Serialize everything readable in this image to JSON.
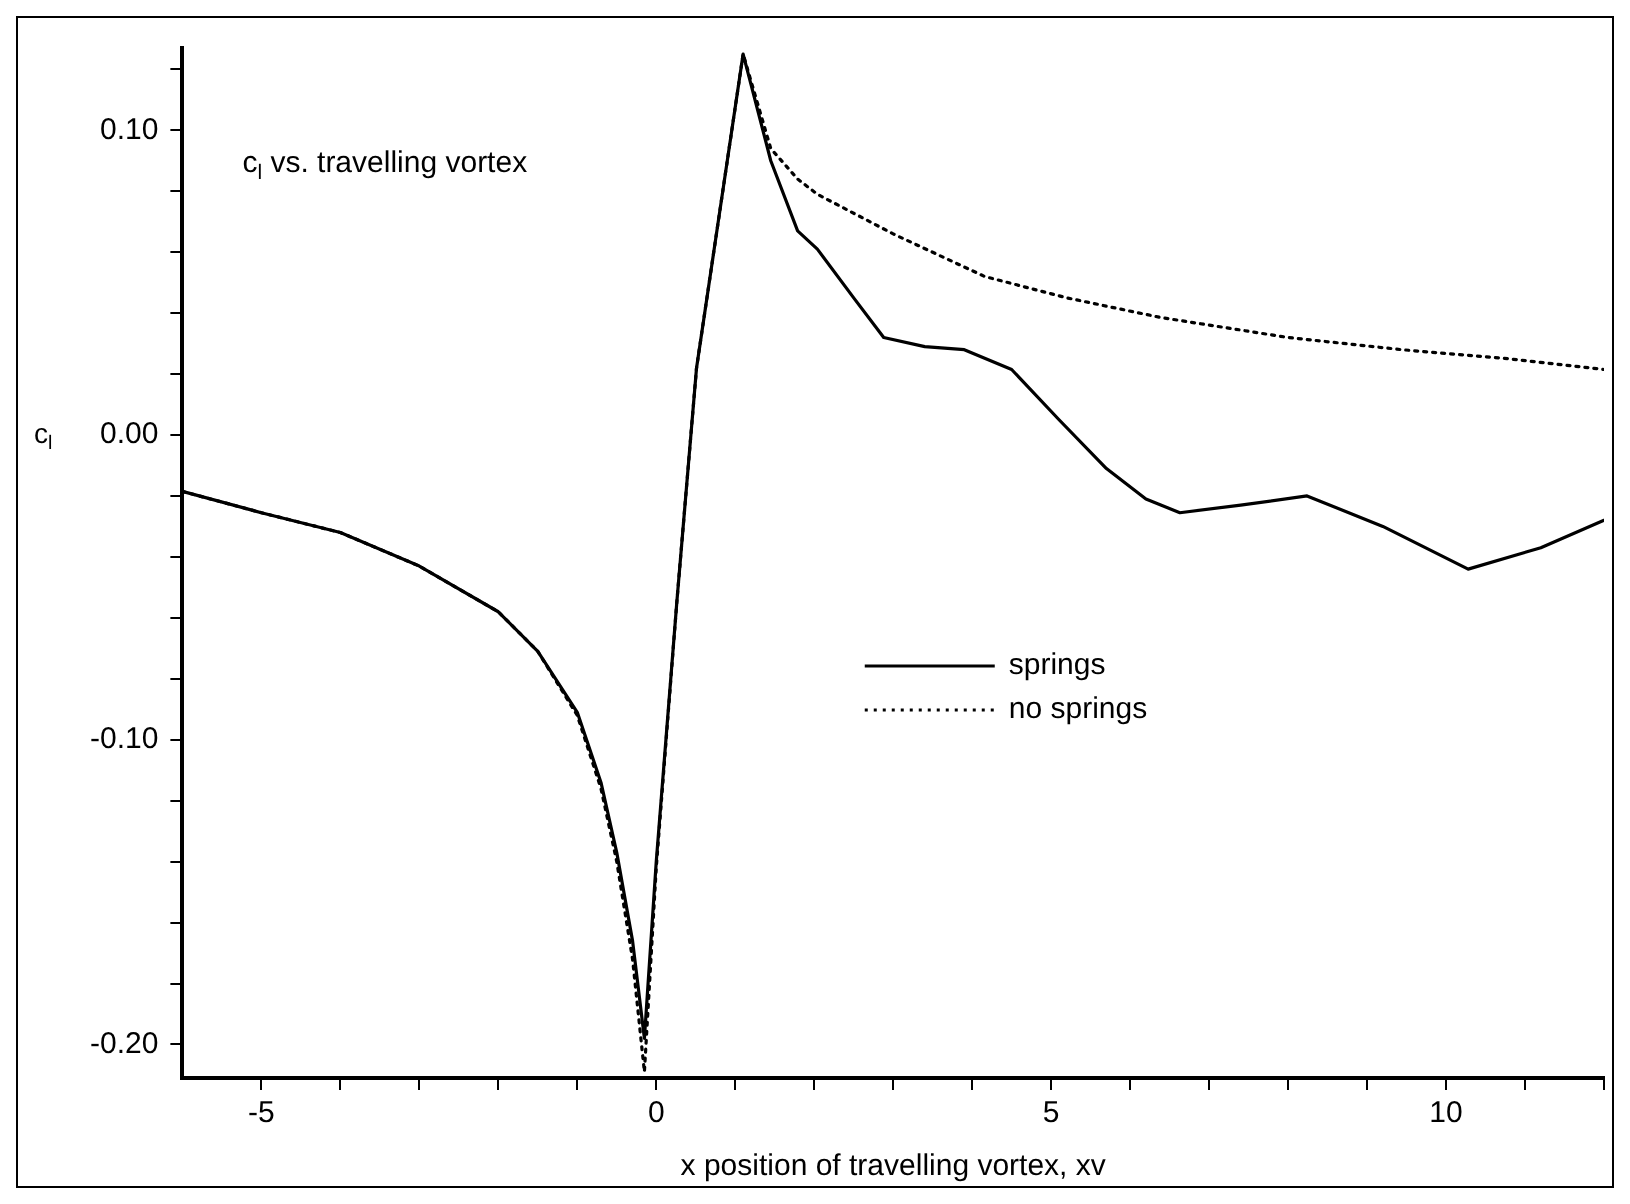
{
  "chart_data": {
    "type": "line",
    "title": "c$_{l}$ vs. travelling vortex",
    "xlabel": "x position of travelling vortex, xv",
    "ylabel": "c$_{l}$",
    "xlim": [
      -6,
      12
    ],
    "ylim": [
      -0.211,
      0.127
    ],
    "xticks": [
      {
        "value": -5,
        "label": "-5"
      },
      {
        "value": -4,
        "label": null
      },
      {
        "value": -3,
        "label": null
      },
      {
        "value": -2,
        "label": null
      },
      {
        "value": -1,
        "label": null
      },
      {
        "value": 0,
        "label": "0"
      },
      {
        "value": 1,
        "label": null
      },
      {
        "value": 2,
        "label": null
      },
      {
        "value": 3,
        "label": null
      },
      {
        "value": 4,
        "label": null
      },
      {
        "value": 5,
        "label": "5"
      },
      {
        "value": 6,
        "label": null
      },
      {
        "value": 7,
        "label": null
      },
      {
        "value": 8,
        "label": null
      },
      {
        "value": 9,
        "label": null
      },
      {
        "value": 10,
        "label": "10"
      },
      {
        "value": 11,
        "label": null
      },
      {
        "value": 12,
        "label": null
      }
    ],
    "yticks": [
      {
        "value": -0.2,
        "label": "-0.20"
      },
      {
        "value": -0.18,
        "label": null
      },
      {
        "value": -0.16,
        "label": null
      },
      {
        "value": -0.14,
        "label": null
      },
      {
        "value": -0.12,
        "label": null
      },
      {
        "value": -0.1,
        "label": "-0.10"
      },
      {
        "value": -0.08,
        "label": null
      },
      {
        "value": -0.06,
        "label": null
      },
      {
        "value": -0.04,
        "label": null
      },
      {
        "value": -0.02,
        "label": null
      },
      {
        "value": 0,
        "label": "0.00"
      },
      {
        "value": 0.02,
        "label": null
      },
      {
        "value": 0.04,
        "label": null
      },
      {
        "value": 0.06,
        "label": null
      },
      {
        "value": 0.08,
        "label": null
      },
      {
        "value": 0.1,
        "label": "0.10"
      },
      {
        "value": 0.12,
        "label": null
      }
    ],
    "grid": false,
    "legend": "right",
    "marker": "none",
    "series": [
      {
        "name": "springs",
        "color": "#000000",
        "line_style": "solid",
        "x": [
          -6,
          -5,
          -4,
          -3,
          -2,
          -1.5,
          -1,
          -0.7,
          -0.5,
          -0.3,
          -0.15,
          0,
          0.26,
          0.51,
          1.1,
          1.45,
          1.79,
          2.04,
          2.5,
          2.88,
          3.4,
          3.9,
          4.5,
          5.1,
          5.7,
          6.2,
          6.63,
          7.4,
          8.24,
          9.2,
          10.28,
          11.2,
          12
        ],
        "values": [
          -0.0185,
          -0.0255,
          -0.032,
          -0.043,
          -0.058,
          -0.071,
          -0.091,
          -0.114,
          -0.137,
          -0.166,
          -0.198,
          -0.14,
          -0.055,
          0.022,
          0.125,
          0.09,
          0.067,
          0.061,
          0.045,
          0.032,
          0.029,
          0.028,
          0.0215,
          0.005,
          -0.011,
          -0.021,
          -0.0255,
          -0.023,
          -0.02,
          -0.03,
          -0.044,
          -0.037,
          -0.028
        ]
      },
      {
        "name": "no springs",
        "color": "#000000",
        "line_style": "dotted",
        "x": [
          -6,
          -5,
          -4,
          -3,
          -2,
          -1.5,
          -1,
          -0.7,
          -0.5,
          -0.3,
          -0.15,
          0,
          0.26,
          0.51,
          1.1,
          1.45,
          1.79,
          2.04,
          3,
          4.16,
          5.2,
          6.38,
          8,
          9.44,
          10.8,
          12
        ],
        "values": [
          -0.0185,
          -0.0255,
          -0.032,
          -0.043,
          -0.058,
          -0.071,
          -0.092,
          -0.116,
          -0.14,
          -0.172,
          -0.209,
          -0.142,
          -0.055,
          0.022,
          0.125,
          0.094,
          0.084,
          0.079,
          0.066,
          0.052,
          0.045,
          0.0386,
          0.032,
          0.028,
          0.025,
          0.0215
        ]
      }
    ]
  }
}
